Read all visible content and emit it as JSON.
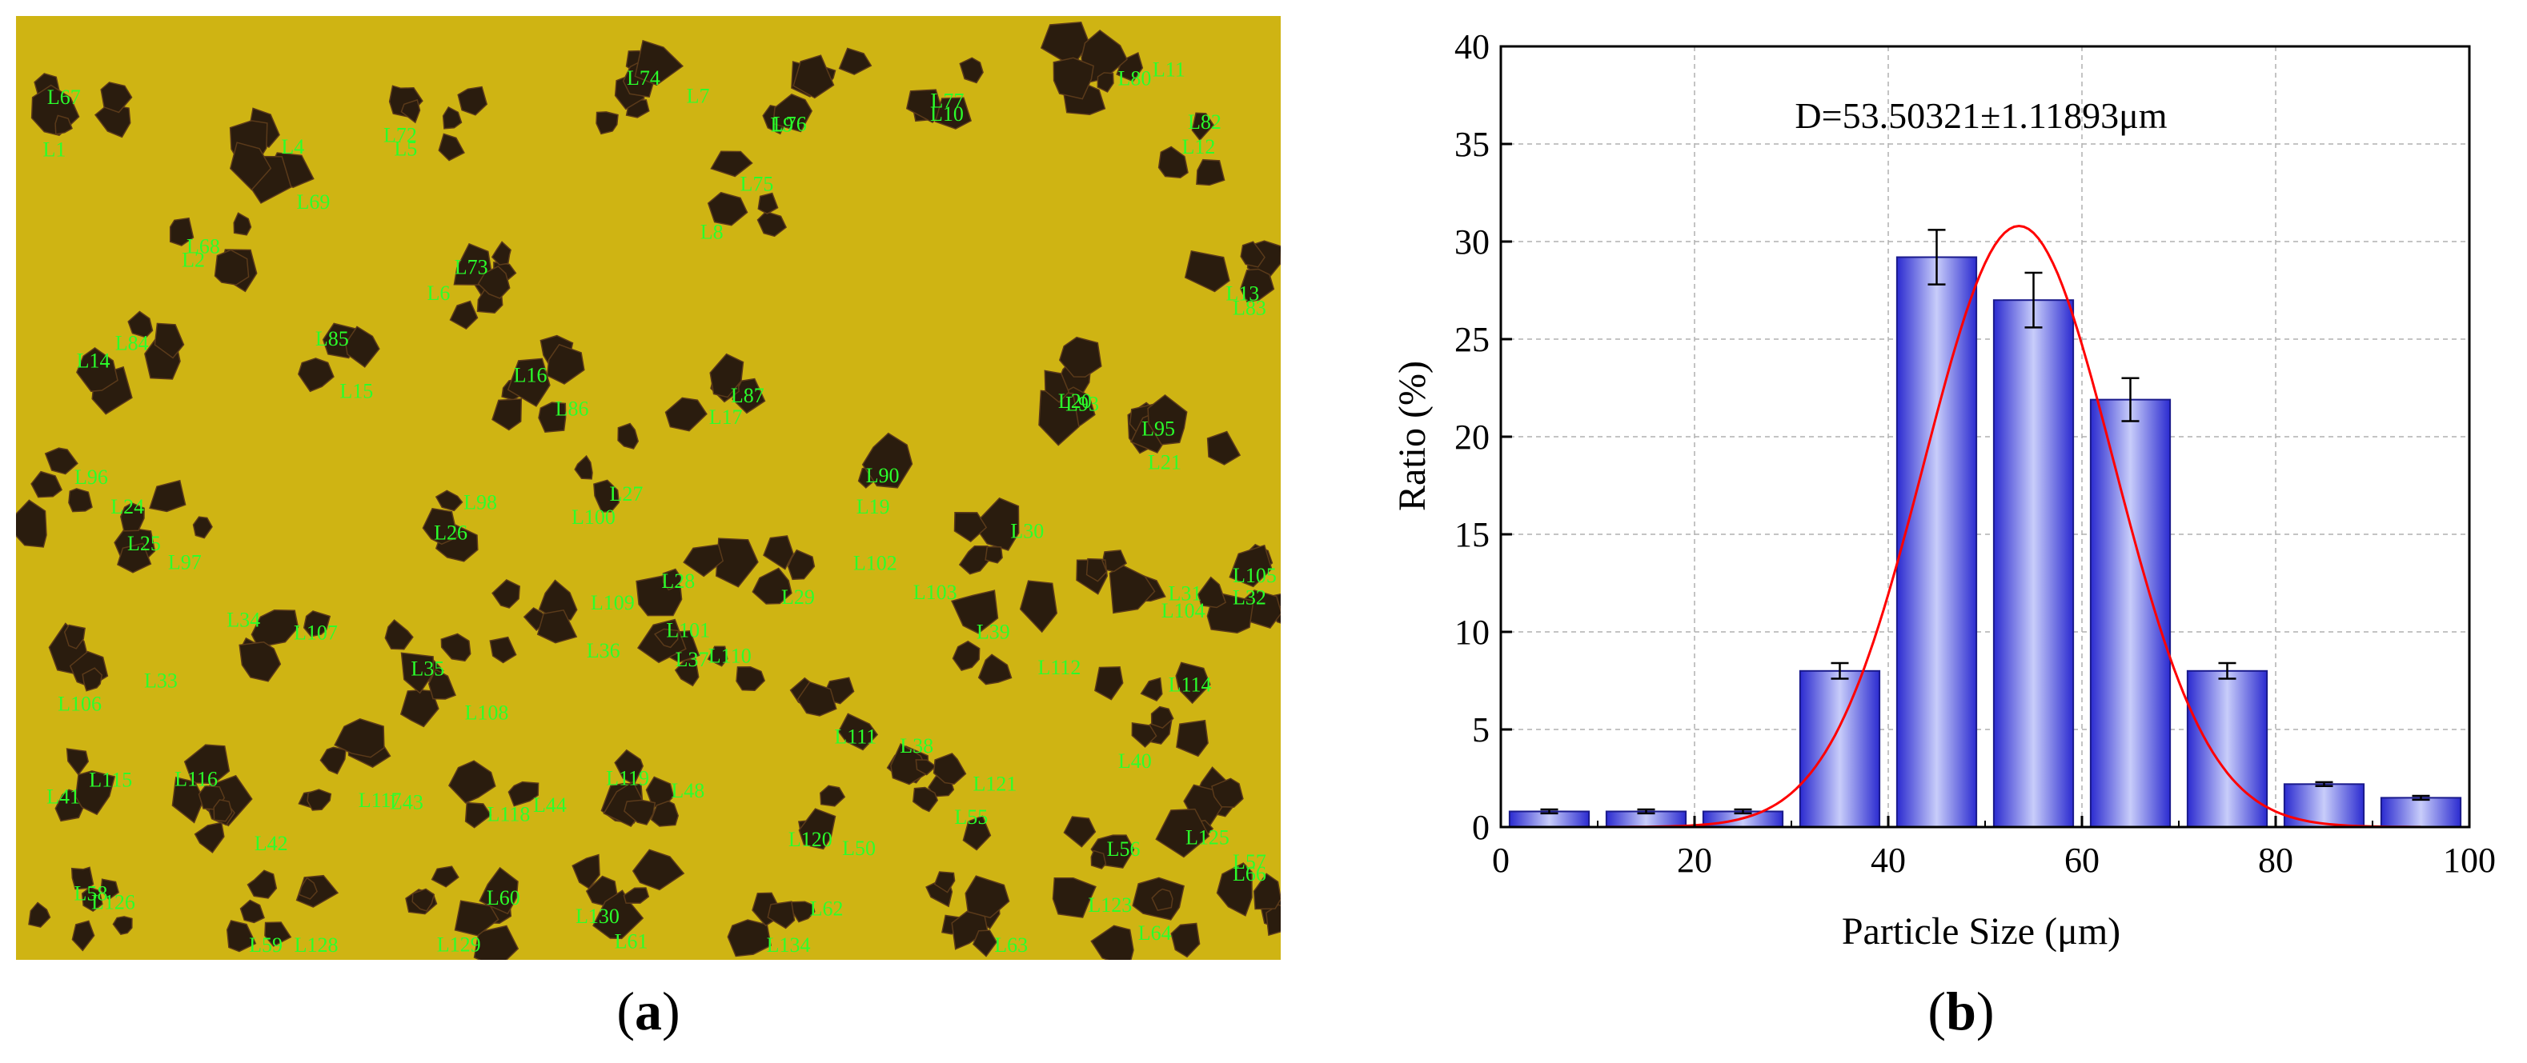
{
  "panels": {
    "a": {
      "open": "(",
      "letter": "a",
      "close": ")"
    },
    "b": {
      "open": "(",
      "letter": "b",
      "close": ")"
    }
  },
  "micrograph": {
    "background_color": "#cfb413",
    "particle_color": "#2a1c0e",
    "label_color": "#2bff2b",
    "labels": [
      "L1",
      "L2",
      "L4",
      "L5",
      "L6",
      "L7",
      "L8",
      "L9",
      "L10",
      "L11",
      "L12",
      "L13",
      "L14",
      "L15",
      "L16",
      "L17",
      "L19",
      "L20",
      "L21",
      "L24",
      "L25",
      "L26",
      "L27",
      "L28",
      "L29",
      "L30",
      "L31",
      "L32",
      "L33",
      "L34",
      "L35",
      "L36",
      "L37",
      "L38",
      "L39",
      "L40",
      "L41",
      "L42",
      "L43",
      "L44",
      "L48",
      "L50",
      "L55",
      "L56",
      "L57",
      "L58",
      "L59",
      "L60",
      "L61",
      "L62",
      "L63",
      "L64",
      "L66",
      "L67",
      "L68",
      "L69",
      "L72",
      "L73",
      "L74",
      "L75",
      "L76",
      "L77",
      "L80",
      "L82",
      "L83",
      "L84",
      "L85",
      "L86",
      "L87",
      "L90",
      "L93",
      "L95",
      "L96",
      "L97",
      "L98",
      "L100",
      "L101",
      "L102",
      "L103",
      "L104",
      "L105",
      "L106",
      "L107",
      "L108",
      "L109",
      "L110",
      "L111",
      "L112",
      "L114",
      "L115",
      "L116",
      "L117",
      "L118",
      "L119",
      "L120",
      "L121",
      "L123",
      "L125",
      "L126",
      "L128",
      "L129",
      "L130",
      "L134"
    ]
  },
  "chart_data": {
    "type": "bar",
    "annotation": "D=53.50321±1.11893μm",
    "xlabel": "Particle Size (μm)",
    "ylabel": "Ratio (%)",
    "xlim": [
      0,
      100
    ],
    "ylim": [
      0,
      40
    ],
    "xticks": [
      0,
      20,
      40,
      60,
      80,
      100
    ],
    "yticks": [
      0,
      5,
      10,
      15,
      20,
      25,
      30,
      35,
      40
    ],
    "x": [
      5,
      15,
      25,
      35,
      45,
      55,
      65,
      75,
      85,
      95
    ],
    "values": [
      0.8,
      0.8,
      0.8,
      8.0,
      29.2,
      27.0,
      21.9,
      8.0,
      2.2,
      1.5
    ],
    "errors": [
      0.1,
      0.1,
      0.1,
      0.4,
      1.4,
      1.4,
      1.1,
      0.4,
      0.1,
      0.1
    ],
    "fit_curve": {
      "type": "gaussian",
      "center": 53.5,
      "peak": 30.8,
      "sigma": 9.8,
      "x_range": [
        5,
        95
      ]
    },
    "grid": true,
    "colors": {
      "bar_edge": "#1a1a8c",
      "bar_center": "#c8cdfa",
      "bar_side": "#2b2bd0",
      "fit": "#ff0000"
    }
  }
}
